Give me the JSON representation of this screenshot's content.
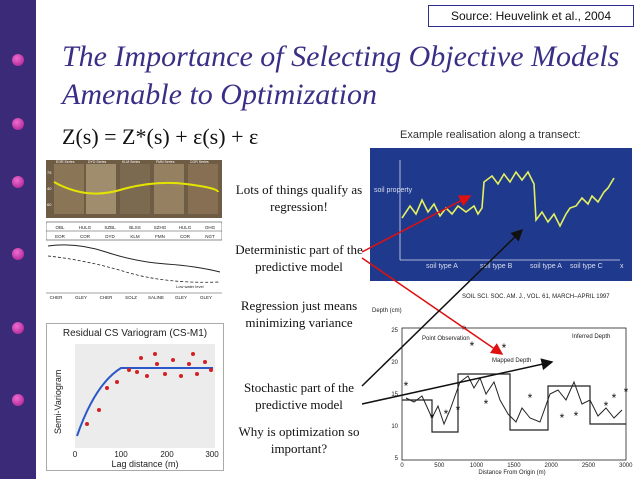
{
  "source": "Source: Heuvelink et al., 2004",
  "title_line1": "The Importance of Selecting Objective Models",
  "title_line2": "Amenable to Optimization",
  "formula": "Z(s) = Z*(s) + ε(s) + ε",
  "notes": {
    "regression": "Lots of things qualify as regression!",
    "deterministic": "Deterministic part of the predictive model",
    "minimizing": "Regression just means minimizing variance",
    "stochastic": "Stochastic part of the predictive model",
    "why": "Why is optimization so important?"
  },
  "transect": {
    "caption": "Example realisation along a transect:",
    "ylabel": "soil property",
    "xlabel": "x",
    "soil_types": [
      "soil type A",
      "soil type B",
      "soil type A",
      "soil type C"
    ]
  },
  "soil_profile": {
    "series_top": [
      "EOR Series",
      "DYD Series",
      "KLM Series",
      "FMN Series",
      "COR Series"
    ],
    "depths": [
      "75",
      "40",
      "60"
    ],
    "table_row1": [
      "OBL",
      "HULG",
      "SZBL",
      "BLSS",
      "SZHG",
      "HULG",
      "OHG"
    ],
    "table_row2": [
      "EOR",
      "COR",
      "DYD",
      "KLM",
      "FMN",
      "COR",
      "NGT"
    ],
    "bottom_labels": [
      "CHER",
      "GLEY",
      "CHER",
      "SOLZ",
      "SALINE",
      "GLEY",
      "GLEY"
    ],
    "water_label": "Low water level"
  },
  "variogram": {
    "title": "Residual CS Variogram (CS-M1)",
    "ylabel": "Semi-Variogram",
    "xlabel": "Lag distance (m)",
    "xticks": [
      "0",
      "100",
      "200",
      "300"
    ]
  },
  "depth_chart": {
    "header": "SOIL SCI. SOC. AM. J., VOL. 61, MARCH–APRIL 1997",
    "ylabel": "Depth (cm)",
    "xlabel": "Distance From Origin (m)",
    "legend": [
      "Point Observation",
      "Mapped Depth",
      "Inferred Depth"
    ],
    "yticks": [
      "25",
      "20",
      "15",
      "10",
      "5"
    ],
    "xticks": [
      "0",
      "500",
      "1000",
      "1500",
      "2000",
      "2500",
      "3000"
    ]
  },
  "colors": {
    "accent": "#3a2f86",
    "sidebar": "#3b2a78",
    "arrow_red": "#e01010",
    "transect_bg": "#1f3a8c",
    "transect_line": "#e4f060"
  }
}
